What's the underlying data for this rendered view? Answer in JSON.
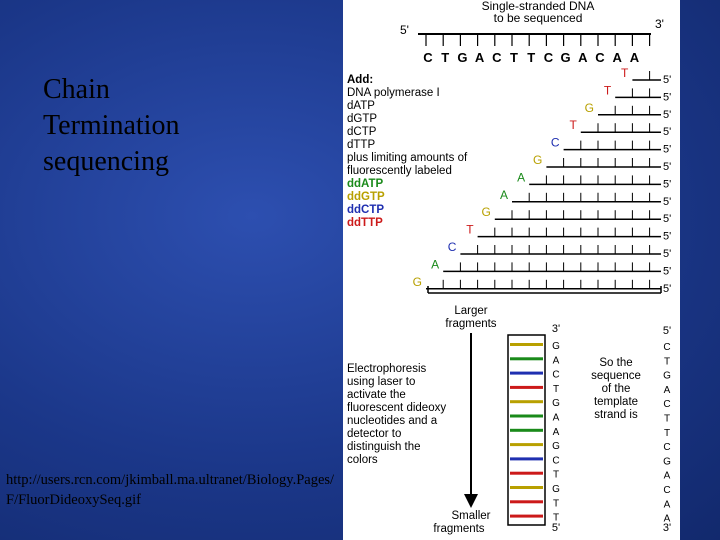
{
  "slide": {
    "title_lines": [
      "Chain",
      "Termination",
      "sequencing"
    ],
    "source_url": "http://users.rcn.com/jkimball.ma.ultranet/Biology.Pages/F/FluorDideoxySeq.gif"
  },
  "diagram": {
    "header_line1": "Single-stranded DNA",
    "header_line2": "to be sequenced",
    "template_5prime": "5'",
    "template_3prime": "3'",
    "template_sequence": [
      "C",
      "T",
      "G",
      "A",
      "C",
      "T",
      "T",
      "C",
      "G",
      "A",
      "C",
      "A",
      "A"
    ],
    "add_heading": "Add:",
    "reagents": [
      {
        "text": "DNA polymerase I",
        "color": "#000000"
      },
      {
        "text": "dATP",
        "color": "#000000"
      },
      {
        "text": "dGTP",
        "color": "#000000"
      },
      {
        "text": "dCTP",
        "color": "#000000"
      },
      {
        "text": "dTTP",
        "color": "#000000"
      },
      {
        "text": "plus limiting amounts of",
        "color": "#000000"
      },
      {
        "text": "fluorescently labeled",
        "color": "#000000"
      },
      {
        "text": "ddATP",
        "color": "#1a8a1a"
      },
      {
        "text": "ddGTP",
        "color": "#b8a000"
      },
      {
        "text": "ddCTP",
        "color": "#1f2fb0"
      },
      {
        "text": "ddTTP",
        "color": "#cc1a1a"
      }
    ],
    "fragments": [
      {
        "base": "T",
        "five": "5'"
      },
      {
        "base": "T",
        "five": "5'"
      },
      {
        "base": "G",
        "five": "5'"
      },
      {
        "base": "T",
        "five": "5'"
      },
      {
        "base": "C",
        "five": "5'"
      },
      {
        "base": "G",
        "five": "5'"
      },
      {
        "base": "A",
        "five": "5'"
      },
      {
        "base": "A",
        "five": "5'"
      },
      {
        "base": "G",
        "five": "5'"
      },
      {
        "base": "T",
        "five": "5'"
      },
      {
        "base": "C",
        "five": "5'"
      },
      {
        "base": "A",
        "five": "5'"
      },
      {
        "base": "G",
        "five": "5'"
      }
    ],
    "base_colors": {
      "A": "#1a8a1a",
      "G": "#b8a000",
      "C": "#1f2fb0",
      "T": "#cc1a1a"
    },
    "larger_fragments": [
      "Larger",
      "fragments"
    ],
    "smaller_fragments": [
      "Smaller",
      "fragments"
    ],
    "electrophoresis_text": [
      "Electrophoresis",
      "using laser to",
      "activate the",
      "fluorescent dideoxy",
      "nucleotides and a",
      "detector to",
      "distinguish the",
      "colors"
    ],
    "gel_top": "3'",
    "gel_bottom": "5'",
    "read_sequence": [
      "G",
      "A",
      "C",
      "T",
      "G",
      "A",
      "A",
      "G",
      "C",
      "T",
      "G",
      "T",
      "T"
    ],
    "so_text": [
      "So the",
      "sequence",
      "of the",
      "template",
      "strand is"
    ],
    "template_strand_top": "5'",
    "template_strand_bottom": "3'",
    "template_strand": [
      "C",
      "T",
      "G",
      "A",
      "C",
      "T",
      "T",
      "C",
      "G",
      "A",
      "C",
      "A",
      "A"
    ]
  }
}
